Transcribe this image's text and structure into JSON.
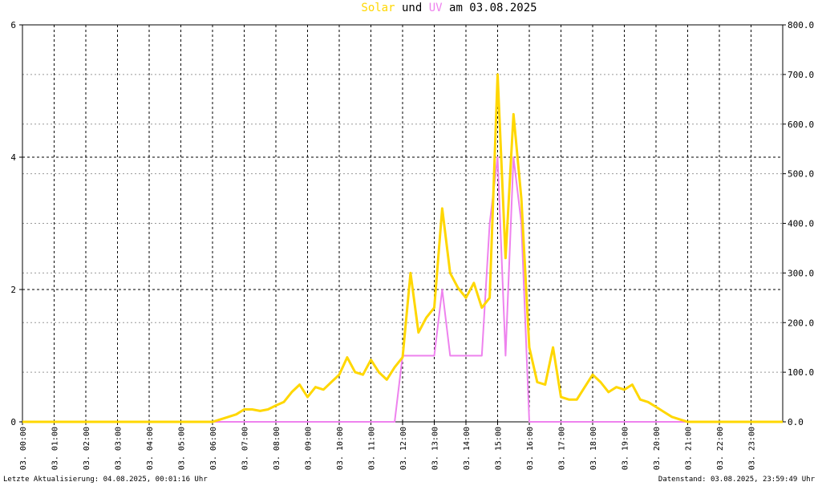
{
  "chart_data": {
    "type": "line",
    "title_joiner": "und",
    "title_suffix": "am 03.08.2025",
    "footer_left": "Letzte Aktualisierung: 04.08.2025, 00:01:16 Uhr",
    "footer_right": "Datenstand: 03.08.2025, 23:59:49 Uhr",
    "x": [
      0,
      0.25,
      0.5,
      0.75,
      1,
      1.25,
      1.5,
      1.75,
      2,
      2.25,
      2.5,
      2.75,
      3,
      3.25,
      3.5,
      3.75,
      4,
      4.25,
      4.5,
      4.75,
      5,
      5.25,
      5.5,
      5.75,
      6,
      6.25,
      6.5,
      6.75,
      7,
      7.25,
      7.5,
      7.75,
      8,
      8.25,
      8.5,
      8.75,
      9,
      9.25,
      9.5,
      9.75,
      10,
      10.25,
      10.5,
      10.75,
      11,
      11.25,
      11.5,
      11.75,
      12,
      12.25,
      12.5,
      12.75,
      13,
      13.25,
      13.5,
      13.75,
      14,
      14.25,
      14.5,
      14.75,
      15,
      15.25,
      15.5,
      15.75,
      16,
      16.25,
      16.5,
      16.75,
      17,
      17.25,
      17.5,
      17.75,
      18,
      18.25,
      18.5,
      18.75,
      19,
      19.25,
      19.5,
      19.75,
      20,
      20.25,
      20.5,
      20.75,
      21,
      21.25,
      21.5,
      21.75,
      22,
      22.25,
      22.5,
      22.75,
      23,
      23.25,
      23.5,
      23.75,
      24
    ],
    "series": [
      {
        "name": "Solar",
        "color": "#ffd700",
        "axis": "y2",
        "values": [
          0,
          0,
          0,
          0,
          0,
          0,
          0,
          0,
          0,
          0,
          0,
          0,
          0,
          0,
          0,
          0,
          0,
          0,
          0,
          0,
          0,
          0,
          0,
          0,
          0,
          5,
          10,
          15,
          25,
          25,
          22,
          25,
          33,
          40,
          60,
          75,
          50,
          70,
          65,
          80,
          95,
          130,
          100,
          95,
          125,
          100,
          85,
          110,
          130,
          300,
          180,
          210,
          230,
          430,
          300,
          270,
          250,
          280,
          230,
          250,
          700,
          330,
          620,
          450,
          150,
          80,
          75,
          150,
          50,
          45,
          45,
          70,
          95,
          80,
          60,
          70,
          65,
          75,
          45,
          40,
          30,
          20,
          10,
          5,
          0,
          0,
          0,
          0,
          0,
          0,
          0,
          0,
          0,
          0,
          0,
          0,
          0
        ]
      },
      {
        "name": "UV",
        "color": "#ee82ee",
        "values": [
          0,
          0,
          0,
          0,
          0,
          0,
          0,
          0,
          0,
          0,
          0,
          0,
          0,
          0,
          0,
          0,
          0,
          0,
          0,
          0,
          0,
          0,
          0,
          0,
          0,
          0,
          0,
          0,
          0,
          0,
          0,
          0,
          0,
          0,
          0,
          0,
          0,
          0,
          0,
          0,
          0,
          0,
          0,
          0,
          0,
          0,
          0,
          0,
          1,
          1,
          1,
          1,
          1,
          2,
          1,
          1,
          1,
          1,
          1,
          3,
          4,
          1,
          4,
          3,
          0,
          0,
          0,
          0,
          0,
          0,
          0,
          0,
          0,
          0,
          0,
          0,
          0,
          0,
          0,
          0,
          0,
          0,
          0,
          0,
          0,
          0,
          0,
          0,
          0,
          0,
          0,
          0,
          0,
          0,
          0,
          0,
          0
        ]
      }
    ],
    "xlim": [
      0,
      24
    ],
    "xticks": [
      {
        "value": 0,
        "label": "03. 00:00"
      },
      {
        "value": 1,
        "label": "03. 01:00"
      },
      {
        "value": 2,
        "label": "03. 02:00"
      },
      {
        "value": 3,
        "label": "03. 03:00"
      },
      {
        "value": 4,
        "label": "03. 04:00"
      },
      {
        "value": 5,
        "label": "03. 05:00"
      },
      {
        "value": 6,
        "label": "03. 06:00"
      },
      {
        "value": 7,
        "label": "03. 07:00"
      },
      {
        "value": 8,
        "label": "03. 08:00"
      },
      {
        "value": 9,
        "label": "03. 09:00"
      },
      {
        "value": 10,
        "label": "03. 10:00"
      },
      {
        "value": 11,
        "label": "03. 11:00"
      },
      {
        "value": 12,
        "label": "03. 12:00"
      },
      {
        "value": 13,
        "label": "03. 13:00"
      },
      {
        "value": 14,
        "label": "03. 14:00"
      },
      {
        "value": 15,
        "label": "03. 15:00"
      },
      {
        "value": 16,
        "label": "03. 16:00"
      },
      {
        "value": 17,
        "label": "03. 17:00"
      },
      {
        "value": 18,
        "label": "03. 18:00"
      },
      {
        "value": 19,
        "label": "03. 19:00"
      },
      {
        "value": 20,
        "label": "03. 20:00"
      },
      {
        "value": 21,
        "label": "03. 21:00"
      },
      {
        "value": 22,
        "label": "03. 22:00"
      },
      {
        "value": 23,
        "label": "03. 23:00"
      }
    ],
    "ylim": [
      0,
      6
    ],
    "yticks": [
      0,
      2,
      4,
      6
    ],
    "y2lim": [
      0,
      800
    ],
    "y2ticks": [
      {
        "value": 0,
        "label": "0.0"
      },
      {
        "value": 100,
        "label": "100.0"
      },
      {
        "value": 200,
        "label": "200.0"
      },
      {
        "value": 300,
        "label": "300.0"
      },
      {
        "value": 400,
        "label": "400.0"
      },
      {
        "value": 500,
        "label": "500.0"
      },
      {
        "value": 600,
        "label": "600.0"
      },
      {
        "value": 700,
        "label": "700.0"
      },
      {
        "value": 800,
        "label": "800.0"
      }
    ],
    "grid": true
  }
}
